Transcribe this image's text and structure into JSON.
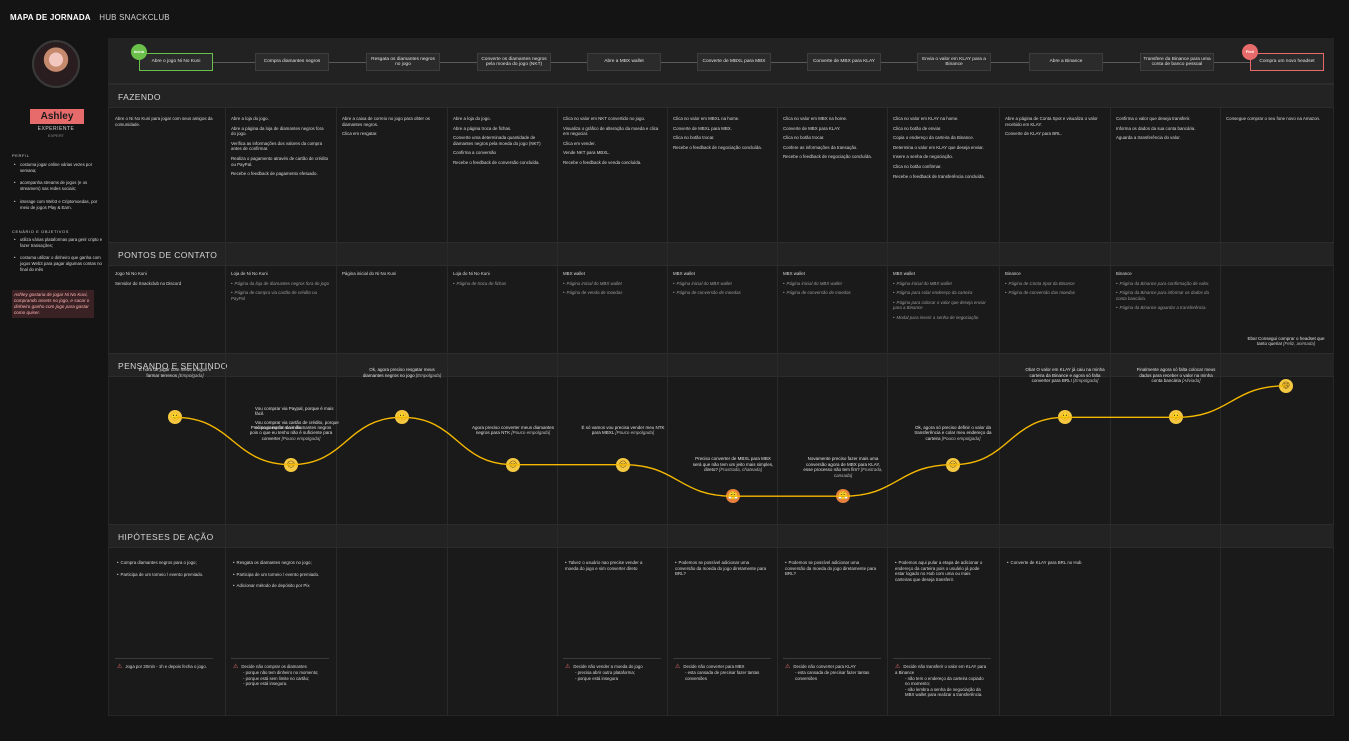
{
  "header": {
    "title": "MAPA DE JORNADA",
    "subtitle": "HUB SNACKCLUB"
  },
  "persona": {
    "name": "Ashley",
    "level": "EXPERIENTE",
    "level_sub": "EXPERT",
    "profile_title": "PERFIL",
    "profile": [
      "costuma jogar online várias vezes por semana;",
      "acompanha streams de jogos (e os streamers) nas redes sociais;",
      "interage com Web3 e Criptomoedas, por meio de jogos Play & Earn."
    ],
    "goals_title": "CENÁRIO E OBJETIVOS",
    "goals": [
      "utiliza várias plataformas para gerir cripto e fazer transações;",
      "costuma utilizar o dinheiro que ganha com jogos Web3 para pagar algumas contas no final do mês"
    ],
    "quote": "Ashley gostaria de jogar Ni No Kuni, comprando assets no jogo, e sacar o dinheiro ganho com jogo para gastar como quiser."
  },
  "stages": [
    "Abre o jogo Ni No Kuni",
    "Compra diamantes negros",
    "Resgata os diamantes negros no jogo",
    "Converte os diamantes negros pela moeda do jogo (NKT)",
    "Abre a MBX wallet",
    "Converte de MBXL para MBX",
    "Converte de MBX para KLAY",
    "Envia o valor em KLAY para a Binance",
    "Abre a Binance",
    "Transfere da Binance para uma conta de banco pessoal",
    "Compra um novo headset"
  ],
  "badges": {
    "start": "Início",
    "end": "Fim!"
  },
  "sections": {
    "doing": "FAZENDO",
    "touchpoints": "PONTOS DE CONTATO",
    "thinking": "PENSANDO E SENTINDO",
    "hypotheses": "HIPÓTESES DE AÇÃO"
  },
  "doing": [
    [
      "Abre o Ni No Kuni para jogar com seus amigos da comunidade."
    ],
    [
      "Abre a loja do jogo.",
      "Abre a página da loja de diamantes negros fora do jogo.",
      "Verifica as informações dos valores da compra antes de confirmar.",
      "Realiza o pagamento através de cartão de crédito ou PayPal.",
      "Recebe o feedback de pagamento efetuado."
    ],
    [
      "Abre a caixa de correio no jogo para obter os diamantes negros.",
      "Clica em resgatar."
    ],
    [
      "Abre a loja do jogo.",
      "Abre a página troca de fichas.",
      "Converte uma determinada quantidade de diamantes negros pela moeda do jogo (NKT)",
      "Confirma a conversão",
      "Recebe o feedback de conversão concluída."
    ],
    [
      "Clica no valor em NKT convertido no jogo.",
      "Visualiza o gráfico de alteração da moeda e clica em negociar.",
      "Clica em vender.",
      "Vende NKT para MBXL.",
      "Recebe o feedback de venda concluída."
    ],
    [
      "Clica no valor em MBXL na home.",
      "Converte de MBXL para MBX.",
      "Clica no botão trocar.",
      "Recebe o feedback de negociação concluída."
    ],
    [
      "Clica no valor em MBX na home.",
      "Converte de MBX para KLAY.",
      "Clica no botão trocar.",
      "Confere as informações da transação.",
      "Recebe o feedback de negociação concluída."
    ],
    [
      "Clica no valor em KLAY na home.",
      "Clica no botão de enviar.",
      "Copia o endereço da carteira da Binance.",
      "Determina o valor em KLAY que deseja enviar.",
      "Insere a senha de negociação.",
      "Clica no botão confirmar.",
      "Recebe o feedback de transferência concluída."
    ],
    [
      "Abre a página de Conta Spot e visualiza o valor recebido em KLAY.",
      "Converte de KLAY para BRL."
    ],
    [
      "Confirma o valor que deseja transferir.",
      "Informa os dados da sua conta bancária.",
      "Aguarda a transferência do valor."
    ],
    [
      "Consegue comprar o seu fone novo na Amazon."
    ]
  ],
  "touch": [
    {
      "items": [
        "Jogo Ni No Kuni",
        "Servidor do Snackclub no Discord"
      ],
      "subs": []
    },
    {
      "items": [
        "Loja de Ni No Kuni"
      ],
      "subs": [
        "Página da loja de diamantes negros fora do jogo",
        "Página de compra via cartão de crédito ou PayPal"
      ]
    },
    {
      "items": [
        "Página inicial do Ni No Kuni"
      ],
      "subs": []
    },
    {
      "items": [
        "Loja do Ni No Kuni"
      ],
      "subs": [
        "Página de troca de fichas"
      ]
    },
    {
      "items": [
        "MBX wallet"
      ],
      "subs": [
        "Página inicial do MBX wallet",
        "Página de venda de moedas"
      ]
    },
    {
      "items": [
        "MBX wallet"
      ],
      "subs": [
        "Página inicial do MBX wallet",
        "Página de conversão de moedas"
      ]
    },
    {
      "items": [
        "MBX wallet"
      ],
      "subs": [
        "Página inicial do MBX wallet",
        "Página de conversão de moedas"
      ]
    },
    {
      "items": [
        "MBX wallet"
      ],
      "subs": [
        "Página inicial do MBX wallet",
        "Página para colar endereço da carteira",
        "Página para colocar o valor que deseja enviar para a Binance",
        "Modal para inserir a senha de negociação"
      ]
    },
    {
      "items": [
        "Binance"
      ],
      "subs": [
        "Página de Conta Spot da Binance",
        "Página de conversão das moedas"
      ]
    },
    {
      "items": [
        "Binance"
      ],
      "subs": [
        "Página da Binance para confirmação de valor.",
        "Página da Binance para informar os dados da conta bancária.",
        "Página da Binance aguardar a transferência."
      ]
    },
    {
      "items": [],
      "subs": []
    }
  ],
  "thinking": [
    {
      "text": "É hora de jogar com meus amigos e farmar terrenos",
      "mood": "[Empolgada]",
      "emoji": "🙂"
    },
    {
      "text": "Preciso comprar mais diamantes negros pois o que eu tenho não é suficiente para converter",
      "mood": "[Pouco empolgada]",
      "extra": [
        "Vou comprar via Paypal, porque é mais fácil.",
        "Vou comprar via cartão de crédito, porque só pago no fim do mês."
      ],
      "emoji": "😑"
    },
    {
      "text": "Ok, agora preciso resgatar meus diamantes negros no jogo",
      "mood": "[Empolgada]",
      "emoji": "🙂"
    },
    {
      "text": "Agora preciso converter meus diamantes negros para NTK",
      "mood": "[Pouco empolgada]",
      "emoji": "😑"
    },
    {
      "text": "É só vamos vou precisa vender meu NTK para MBXL",
      "mood": "[Pouco empolgada]",
      "emoji": "😑"
    },
    {
      "text": "Preciso converter de MBXL para MBX será que não tem um jeito mais simples, direto?",
      "mood": "[Frustrada, chateada]",
      "emoji": "😤"
    },
    {
      "text": "Novamente preciso fazer mais uma conversão agora de MBX para KLAY, esse processo não tem fim?",
      "mood": "[Frustrada, cansada]",
      "emoji": "😤"
    },
    {
      "text": "Ok, agora só preciso definir o valor da transferência e colar meu endereço da carteira",
      "mood": "[Pouco empolgada]",
      "emoji": "😑"
    },
    {
      "text": "Oba! O valor em KLAY já caiu na minha carteira da Binance e agora só falta converter para BRL!",
      "mood": "[Empolgada]",
      "emoji": "🙂"
    },
    {
      "text": "Finalmente agora só falta colocar meus dados para receber o valor na minha conta bancária",
      "mood": "[Aliviada]",
      "emoji": "🙂"
    },
    {
      "text": "Eba! Consegui comprar o headset que tanto queria!",
      "mood": "[Feliz, animada]",
      "emoji": "😄"
    }
  ],
  "hyp_top": [
    [
      "Compra diamantes negros para o jogo;",
      "Participa de um torneio / evento premiado."
    ],
    [
      "Resgata os diamantes negros no jogo;",
      "Participa de um torneio / evento premiado.",
      "Adicionar método de depósito por Pix"
    ],
    [],
    [],
    [
      "Talvez o usuário nao precise vender a moeda do jogo e sim converter direto"
    ],
    [
      "Podemos se possível adicionar uma conversão da moeda do jogo diretamente para BRL?"
    ],
    [
      "Podemos se possível adicionar uma conversão da moeda do jogo diretamente para BRL?"
    ],
    [
      "Podemos aqui pular a etapa de adicionar o endereço da carteira pois o usuário já pode estar logado no Hub com uma ou mais carteiras que deseja transferir."
    ],
    [
      "Converte de KLAY para BRL no Hub"
    ],
    [],
    []
  ],
  "hyp_bottom": [
    {
      "text": "Joga por 30min - 1h e depois fecha o jogo."
    },
    {
      "text": "Decide não comprar os diamantes",
      "sub": [
        "porque não tem dinheiro no momento;",
        "porque está sem limite no cartão;",
        "porque está insegura."
      ]
    },
    null,
    null,
    {
      "text": "Decide não vender a moeda do jogo",
      "sub": [
        "precisa abrir outra plataforma;",
        "porque está insegura"
      ]
    },
    {
      "text": "Decide não converter para MBX",
      "sub": [
        "esta cansada de precisar fazer tantas conversões"
      ]
    },
    {
      "text": "Decide não converter para KLAY",
      "sub": [
        "esta cansada de precisar fazer tantas conversões"
      ]
    },
    {
      "text": "Decide não transferir o valor em KLAY para a Binance",
      "sub": [
        "não tem o endereço da carteira copiado no momento;",
        "não lembra a senha de negociação da MBX wallet para realizar a transferência."
      ]
    },
    null,
    null,
    null
  ],
  "curve": {
    "moods": [
      4,
      1,
      4,
      1,
      1,
      -1,
      -1,
      1,
      4,
      4,
      6
    ],
    "range": [
      -2,
      7
    ]
  },
  "colors": {
    "accent": "#e86b6b",
    "start": "#6bc04b",
    "curve": "#f5b800"
  }
}
